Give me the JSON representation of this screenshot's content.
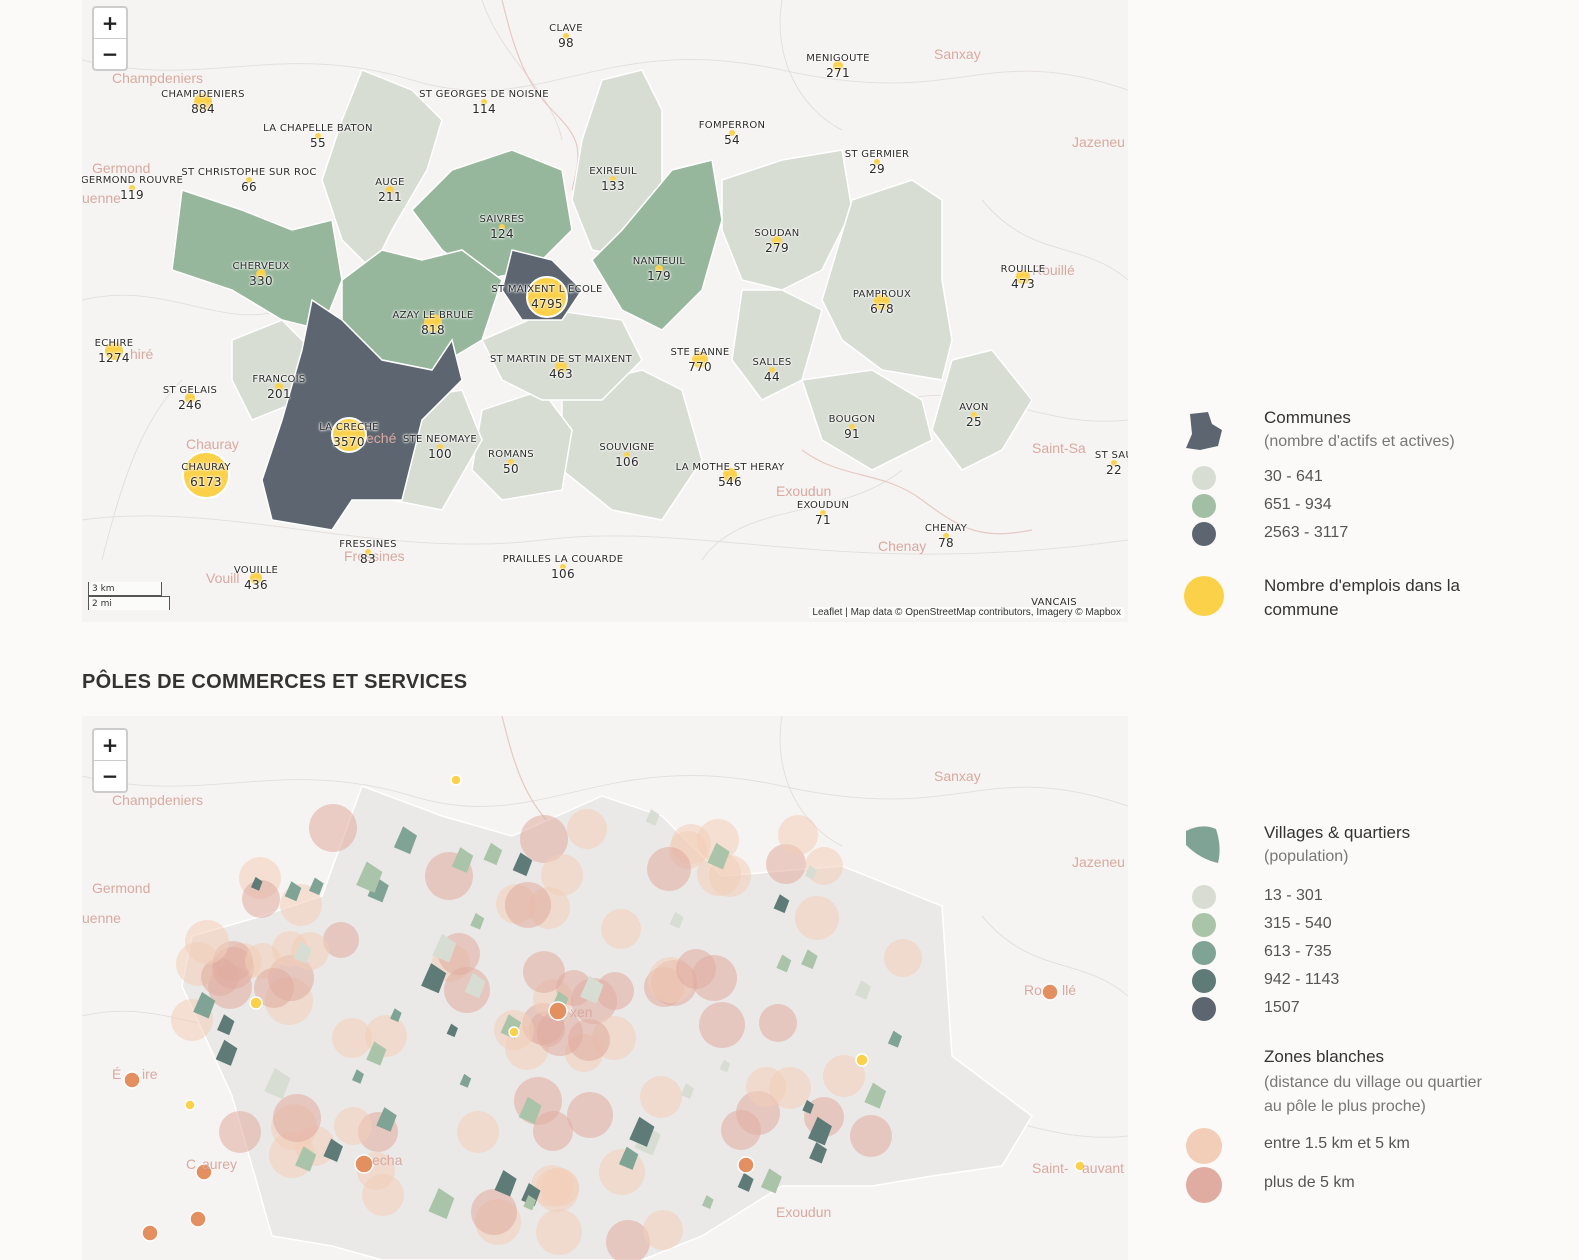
{
  "colors": {
    "pale": "#d8ddd3",
    "mid": "#a2bea4",
    "green": "#97b79c",
    "dark": "#5d6670",
    "yellow": "#fcd14a",
    "orange_dot": "#e38f5f",
    "zone_light": "#f2cdb8",
    "zone_dark": "#e0aba0"
  },
  "map1": {
    "zoom": {
      "plus": "+",
      "minus": "−"
    },
    "scale": {
      "km": "3 km",
      "mi": "2 mi"
    },
    "attribution": "Leaflet | Map data © OpenStreetMap contributors, Imagery © Mapbox",
    "basemap_labels": [
      "Champdeniers",
      "Germond",
      "uenne",
      "Sanxay",
      "Jazeneu",
      "Rouillé",
      "hiré",
      "Chauray",
      "eché",
      "Saint-Sa",
      "Exoudun",
      "Chenay",
      "Vouill",
      "Fressines",
      "Augé",
      "Saivres",
      "aint"
    ],
    "communes": [
      {
        "name": "CLAVE",
        "value": "98"
      },
      {
        "name": "MENIGOUTE",
        "value": "271"
      },
      {
        "name": "CHAMPDENIERS",
        "value": "884"
      },
      {
        "name": "ST GEORGES DE NOISNE",
        "value": "114"
      },
      {
        "name": "LA CHAPELLE BATON",
        "value": "55"
      },
      {
        "name": "FOMPERRON",
        "value": "54"
      },
      {
        "name": "ST GERMIER",
        "value": "29"
      },
      {
        "name": "EXIREUIL",
        "value": "133"
      },
      {
        "name": "GERMOND ROUVRE",
        "value": "119"
      },
      {
        "name": "ST CHRISTOPHE SUR ROC",
        "value": "66"
      },
      {
        "name": "AUGE",
        "value": "211"
      },
      {
        "name": "SAIVRES",
        "value": "124"
      },
      {
        "name": "SOUDAN",
        "value": "279"
      },
      {
        "name": "CHERVEUX",
        "value": "330"
      },
      {
        "name": "NANTEUIL",
        "value": "179"
      },
      {
        "name": "ROUILLE",
        "value": "473"
      },
      {
        "name": "ST MAIXENT L ECOLE",
        "value": "4795"
      },
      {
        "name": "PAMPROUX",
        "value": "678"
      },
      {
        "name": "AZAY LE BRULE",
        "value": "818"
      },
      {
        "name": "ECHIRE",
        "value": "1274"
      },
      {
        "name": "STE EANNE",
        "value": "770"
      },
      {
        "name": "ST MARTIN DE ST MAIXENT",
        "value": "463"
      },
      {
        "name": "SALLES",
        "value": "44"
      },
      {
        "name": "FRANCOIS",
        "value": "201"
      },
      {
        "name": "ST GELAIS",
        "value": "246"
      },
      {
        "name": "AVON",
        "value": "25"
      },
      {
        "name": "BOUGON",
        "value": "91"
      },
      {
        "name": "LA CRECHE",
        "value": "3570"
      },
      {
        "name": "STE NEOMAYE",
        "value": "100"
      },
      {
        "name": "SOUVIGNE",
        "value": "106"
      },
      {
        "name": "ROMANS",
        "value": "50"
      },
      {
        "name": "ST SAU",
        "value": "22"
      },
      {
        "name": "CHAURAY",
        "value": "6173"
      },
      {
        "name": "LA MOTHE ST HERAY",
        "value": "546"
      },
      {
        "name": "EXOUDUN",
        "value": "71"
      },
      {
        "name": "CHENAY",
        "value": "78"
      },
      {
        "name": "FRESSINES",
        "value": "83"
      },
      {
        "name": "PRAILLES LA COUARDE",
        "value": "106"
      },
      {
        "name": "VOUILLE",
        "value": "436"
      },
      {
        "name": "VANCAIS",
        "value": ""
      }
    ]
  },
  "legend1": {
    "title": "Communes",
    "subtitle": "(nombre d'actifs et actives)",
    "classes": [
      "30 - 641",
      "651 - 934",
      "2563 - 3117"
    ],
    "jobs_label": "Nombre d'emplois dans la commune"
  },
  "section2": {
    "title": "PÔLES DE COMMERCES ET SERVICES"
  },
  "map2": {
    "zoom": {
      "plus": "+",
      "minus": "−"
    },
    "basemap_labels": [
      "Champdeniers",
      "Germond",
      "uenne",
      "Sanxay",
      "Jazeneu",
      "Ro",
      "llé",
      "É",
      "ire",
      "C",
      "aurey",
      "echa",
      "Saint-",
      "auvant",
      "Exoudun",
      "xen"
    ]
  },
  "legend2": {
    "title": "Villages & quartiers",
    "subtitle": "(population)",
    "classes": [
      "13 - 301",
      "315 - 540",
      "613 - 735",
      "942 - 1143",
      "1507"
    ],
    "zones_title": "Zones blanches",
    "zones_subtitle": [
      "(distance du village ou quartier",
      "au pôle le plus proche)"
    ],
    "zones": [
      "entre 1.5 km et 5 km",
      "plus de 5 km"
    ]
  }
}
